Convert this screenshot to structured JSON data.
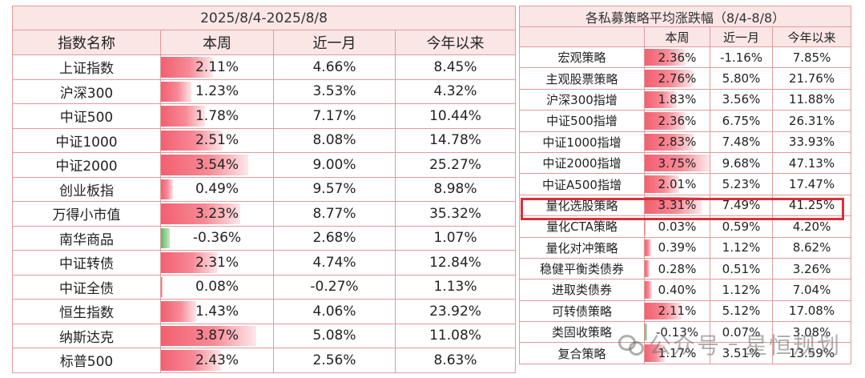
{
  "left_table": {
    "title": "2025/8/4-2025/8/8",
    "headers": [
      "指数名称",
      "本周",
      "近一月",
      "今年以来"
    ],
    "rows": [
      {
        "name": "上证指数",
        "week": "2.11%",
        "week_value": 2.11,
        "month": "4.66%",
        "ytd": "8.45%"
      },
      {
        "name": "沪深300",
        "week": "1.23%",
        "week_value": 1.23,
        "month": "3.53%",
        "ytd": "4.32%"
      },
      {
        "name": "中证500",
        "week": "1.78%",
        "week_value": 1.78,
        "month": "7.17%",
        "ytd": "10.44%"
      },
      {
        "name": "中证1000",
        "week": "2.51%",
        "week_value": 2.51,
        "month": "8.08%",
        "ytd": "14.78%"
      },
      {
        "name": "中证2000",
        "week": "3.54%",
        "week_value": 3.54,
        "month": "9.00%",
        "ytd": "25.27%"
      },
      {
        "name": "创业板指",
        "week": "0.49%",
        "week_value": 0.49,
        "month": "9.57%",
        "ytd": "8.98%"
      },
      {
        "name": "万得小市值",
        "week": "3.23%",
        "week_value": 3.23,
        "month": "8.77%",
        "ytd": "35.32%"
      },
      {
        "name": "南华商品",
        "week": "-0.36%",
        "week_value": -0.36,
        "month": "2.68%",
        "ytd": "1.07%"
      },
      {
        "name": "中证转债",
        "week": "2.31%",
        "week_value": 2.31,
        "month": "4.74%",
        "ytd": "12.84%"
      },
      {
        "name": "中证全债",
        "week": "0.08%",
        "week_value": 0.08,
        "month": "-0.27%",
        "ytd": "1.13%"
      },
      {
        "name": "恒生指数",
        "week": "1.43%",
        "week_value": 1.43,
        "month": "4.06%",
        "ytd": "23.92%"
      },
      {
        "name": "纳斯达克",
        "week": "3.87%",
        "week_value": 3.87,
        "month": "5.08%",
        "ytd": "11.08%"
      },
      {
        "name": "标普500",
        "week": "2.43%",
        "week_value": 2.43,
        "month": "2.56%",
        "ytd": "8.63%"
      }
    ]
  },
  "right_table": {
    "title": "各私募策略平均涨跌幅（8/4-8/8）",
    "headers": [
      "",
      "本周",
      "近一月",
      "今年以来"
    ],
    "highlighted_row": "量化选股策略",
    "highlight_color": "#d9303a",
    "rows": [
      {
        "name": "宏观策略",
        "week": "2.36%",
        "week_value": 2.36,
        "month": "-1.16%",
        "ytd": "7.85%"
      },
      {
        "name": "主观股票策略",
        "week": "2.76%",
        "week_value": 2.76,
        "month": "5.80%",
        "ytd": "21.76%"
      },
      {
        "name": "沪深300指增",
        "week": "1.83%",
        "week_value": 1.83,
        "month": "3.56%",
        "ytd": "11.88%"
      },
      {
        "name": "中证500指增",
        "week": "2.36%",
        "week_value": 2.36,
        "month": "6.75%",
        "ytd": "26.31%"
      },
      {
        "name": "中证1000指增",
        "week": "2.83%",
        "week_value": 2.83,
        "month": "7.48%",
        "ytd": "33.93%"
      },
      {
        "name": "中证2000指增",
        "week": "3.75%",
        "week_value": 3.75,
        "month": "9.68%",
        "ytd": "47.13%"
      },
      {
        "name": "中证A500指增",
        "week": "2.01%",
        "week_value": 2.01,
        "month": "5.23%",
        "ytd": "17.47%"
      },
      {
        "name": "量化选股策略",
        "week": "3.31%",
        "week_value": 3.31,
        "month": "7.49%",
        "ytd": "41.25%"
      },
      {
        "name": "量化CTA策略",
        "week": "0.03%",
        "week_value": 0.03,
        "month": "0.59%",
        "ytd": "4.20%"
      },
      {
        "name": "量化对冲策略",
        "week": "0.39%",
        "week_value": 0.39,
        "month": "1.12%",
        "ytd": "8.62%"
      },
      {
        "name": "稳健平衡类债券",
        "week": "0.28%",
        "week_value": 0.28,
        "month": "0.51%",
        "ytd": "3.26%"
      },
      {
        "name": "进取类债券",
        "week": "0.40%",
        "week_value": 0.4,
        "month": "1.12%",
        "ytd": "7.04%"
      },
      {
        "name": "可转债策略",
        "week": "2.11%",
        "week_value": 2.11,
        "month": "5.12%",
        "ytd": "17.08%"
      },
      {
        "name": "类固收策略",
        "week": "-0.13%",
        "week_value": -0.13,
        "month": "0.07%",
        "ytd": "3.08%"
      },
      {
        "name": "复合策略",
        "week": "1.17%",
        "week_value": 1.17,
        "month": "3.51%",
        "ytd": "13.59%"
      }
    ]
  },
  "watermark": {
    "icon": "wechat-icon",
    "parts": [
      "公众号",
      "星恒规划"
    ]
  }
}
